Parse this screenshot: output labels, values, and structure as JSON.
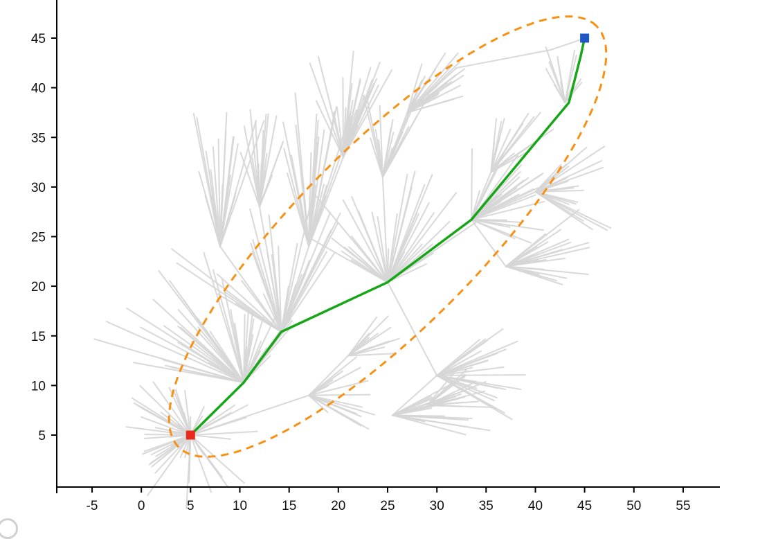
{
  "figure": {
    "background": "#ffffff",
    "has_corner_circle_decoration": true
  },
  "chart_data": {
    "type": "line",
    "description": "RRT path-planning tree with informed sampling ellipse, start and goal markers, and final green path",
    "title": "",
    "xlabel": "",
    "ylabel": "",
    "grid": false,
    "legend": null,
    "axis_color": "#000000",
    "xlim": [
      -8.5,
      58.5
    ],
    "ylim": [
      0,
      49
    ],
    "x_ticks": [
      -5,
      0,
      5,
      10,
      15,
      20,
      25,
      30,
      35,
      40,
      45,
      50,
      55
    ],
    "y_ticks": [
      5,
      10,
      15,
      20,
      25,
      30,
      35,
      40,
      45
    ],
    "start": {
      "label": "start",
      "x": 5,
      "y": 5,
      "color": "#e8291c",
      "marker": "square"
    },
    "goal": {
      "label": "goal",
      "x": 45,
      "y": 45,
      "color": "#1d57c6",
      "marker": "square"
    },
    "path": {
      "name": "final-path",
      "color": "#17a617",
      "width": 3.5,
      "points": [
        [
          5,
          5
        ],
        [
          10.4,
          10.3
        ],
        [
          14.2,
          15.4
        ],
        [
          25,
          20.4
        ],
        [
          33.5,
          26.7
        ],
        [
          43.4,
          38.5
        ],
        [
          44.6,
          43.2
        ],
        [
          45,
          45
        ]
      ]
    },
    "ellipse": {
      "name": "informed-sampling-ellipse",
      "cx": 25,
      "cy": 25,
      "a": 30,
      "b": 9.2,
      "angle_deg": 45,
      "color": "#f79114",
      "dash": [
        11,
        8
      ],
      "width": 3
    },
    "tree": {
      "color": "#d6d6d6",
      "width": 2.1,
      "opacity": 0.9,
      "seed": 11,
      "edges": [
        [
          5,
          5,
          10.4,
          10.3
        ],
        [
          10.4,
          10.3,
          14.2,
          15.4
        ],
        [
          14.2,
          15.4,
          25,
          20.4
        ],
        [
          25,
          20.4,
          33.5,
          26.7
        ],
        [
          33.5,
          26.7,
          43.4,
          38.5
        ],
        [
          43.4,
          38.5,
          45,
          45
        ],
        [
          14.2,
          15.4,
          8,
          24
        ],
        [
          14.2,
          15.4,
          12,
          28
        ],
        [
          14.2,
          15.4,
          17,
          24
        ],
        [
          17,
          24,
          20.5,
          33
        ],
        [
          25,
          20.4,
          24.5,
          31
        ],
        [
          24.5,
          31,
          27,
          37.5
        ],
        [
          25,
          20.4,
          30,
          11
        ],
        [
          30,
          11,
          25.5,
          7
        ],
        [
          5,
          5,
          17,
          9
        ],
        [
          17,
          9,
          21,
          13
        ],
        [
          33.5,
          26.7,
          37,
          22
        ],
        [
          33.5,
          26.7,
          40,
          29.5
        ],
        [
          33.5,
          26.7,
          35.5,
          31.5
        ],
        [
          27,
          37.5,
          32,
          42
        ],
        [
          32,
          42,
          41.5,
          43.8
        ],
        [
          41.5,
          43.8,
          44.8,
          44.9
        ]
      ],
      "fans": [
        {
          "x": 5,
          "y": 5,
          "n": 55,
          "a0": 0,
          "a1": 360,
          "lmin": 1.5,
          "lmax": 7.5
        },
        {
          "x": 10.4,
          "y": 10.3,
          "n": 30,
          "a0": 95,
          "a1": 170,
          "lmin": 4,
          "lmax": 16
        },
        {
          "x": 10.4,
          "y": 10.3,
          "n": 18,
          "a0": 45,
          "a1": 95,
          "lmin": 3,
          "lmax": 9
        },
        {
          "x": 14.2,
          "y": 15.4,
          "n": 30,
          "a0": 55,
          "a1": 150,
          "lmin": 4,
          "lmax": 14
        },
        {
          "x": 8,
          "y": 24,
          "n": 22,
          "a0": 70,
          "a1": 110,
          "lmin": 4,
          "lmax": 14
        },
        {
          "x": 12,
          "y": 28,
          "n": 18,
          "a0": 65,
          "a1": 115,
          "lmin": 3,
          "lmax": 10
        },
        {
          "x": 17,
          "y": 24,
          "n": 25,
          "a0": 70,
          "a1": 110,
          "lmin": 5,
          "lmax": 16
        },
        {
          "x": 20.5,
          "y": 33,
          "n": 28,
          "a0": 60,
          "a1": 118,
          "lmin": 3,
          "lmax": 11
        },
        {
          "x": 25,
          "y": 20.4,
          "n": 32,
          "a0": 25,
          "a1": 155,
          "lmin": 3,
          "lmax": 12
        },
        {
          "x": 24.5,
          "y": 31,
          "n": 18,
          "a0": 60,
          "a1": 110,
          "lmin": 3,
          "lmax": 10
        },
        {
          "x": 27,
          "y": 37.5,
          "n": 22,
          "a0": 15,
          "a1": 75,
          "lmin": 3,
          "lmax": 8
        },
        {
          "x": 33.5,
          "y": 26.7,
          "n": 28,
          "a0": -25,
          "a1": 95,
          "lmin": 3,
          "lmax": 9
        },
        {
          "x": 30,
          "y": 11,
          "n": 24,
          "a0": -35,
          "a1": 40,
          "lmin": 3,
          "lmax": 9
        },
        {
          "x": 25.5,
          "y": 7,
          "n": 20,
          "a0": -15,
          "a1": 28,
          "lmin": 3,
          "lmax": 10
        },
        {
          "x": 37,
          "y": 22,
          "n": 22,
          "a0": -25,
          "a1": 40,
          "lmin": 3,
          "lmax": 9.5
        },
        {
          "x": 40,
          "y": 29.5,
          "n": 20,
          "a0": -35,
          "a1": 55,
          "lmin": 3,
          "lmax": 8.5
        },
        {
          "x": 35.5,
          "y": 31.5,
          "n": 14,
          "a0": 25,
          "a1": 85,
          "lmin": 3,
          "lmax": 8
        },
        {
          "x": 43,
          "y": 38.5,
          "n": 12,
          "a0": 45,
          "a1": 125,
          "lmin": 2,
          "lmax": 6
        },
        {
          "x": 17,
          "y": 9,
          "n": 16,
          "a0": -50,
          "a1": 40,
          "lmin": 2,
          "lmax": 7
        },
        {
          "x": 21,
          "y": 13,
          "n": 12,
          "a0": -20,
          "a1": 60,
          "lmin": 2,
          "lmax": 6
        },
        {
          "x": 29,
          "y": 8,
          "n": 14,
          "a0": -10,
          "a1": 50,
          "lmin": 2,
          "lmax": 7
        }
      ]
    }
  }
}
